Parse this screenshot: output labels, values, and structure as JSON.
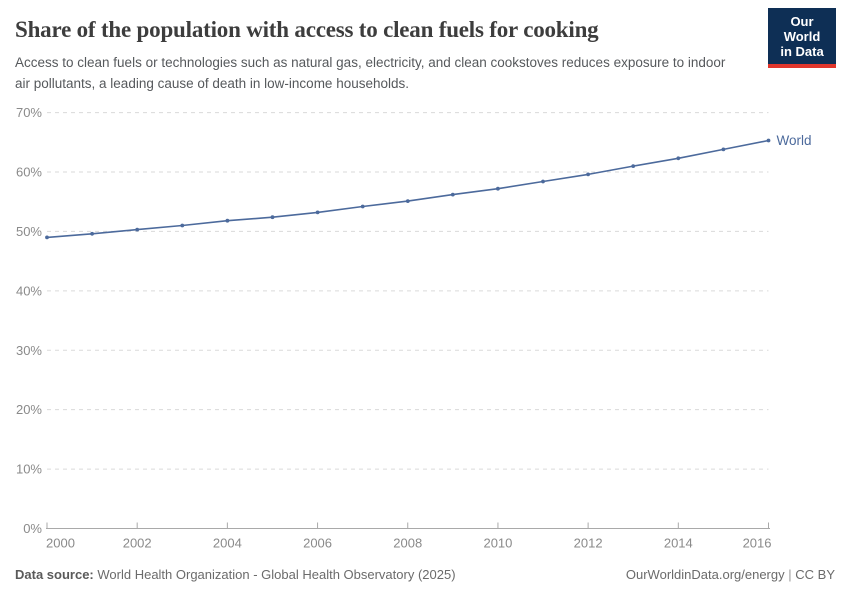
{
  "logo": {
    "line1": "Our World",
    "line2": "in Data"
  },
  "chart_data": {
    "type": "line",
    "title": "Share of the population with access to clean fuels for cooking",
    "subtitle": "Access to clean fuels or technologies such as natural gas, electricity, and clean cookstoves reduces exposure to indoor air pollutants, a leading cause of death in low-income households.",
    "x": [
      2000,
      2001,
      2002,
      2003,
      2004,
      2005,
      2006,
      2007,
      2008,
      2009,
      2010,
      2011,
      2012,
      2013,
      2014,
      2015,
      2016
    ],
    "series": [
      {
        "name": "World",
        "color": "#4c6a9c",
        "values": [
          49.0,
          49.6,
          50.3,
          51.0,
          51.8,
          52.4,
          53.2,
          54.2,
          55.1,
          56.2,
          57.2,
          58.4,
          59.6,
          61.0,
          62.3,
          63.8,
          65.3
        ]
      }
    ],
    "xlabel": "",
    "ylabel": "",
    "xlim": [
      2000,
      2016
    ],
    "ylim": [
      0,
      70
    ],
    "yticks": [
      0,
      10,
      20,
      30,
      40,
      50,
      60,
      70
    ],
    "ytick_suffix": "%",
    "xticks": [
      2000,
      2002,
      2004,
      2006,
      2008,
      2010,
      2012,
      2014,
      2016
    ],
    "grid": "horizontal-dashed",
    "legend_position": "line-end-label"
  },
  "footer": {
    "source_label": "Data source:",
    "source_text": "World Health Organization - Global Health Observatory (2025)",
    "link": "OurWorldinData.org/energy",
    "separator": "|",
    "license": "CC BY"
  },
  "colors": {
    "line": "#4c6a9c",
    "logo_bg": "#0e2f55",
    "logo_stripe": "#e0362c",
    "title_text": "#3d3d3d",
    "subtitle_text": "#56595c",
    "tick_text": "#8a8a8a",
    "gridline": "#dadada",
    "axis": "#a9a9a9"
  }
}
